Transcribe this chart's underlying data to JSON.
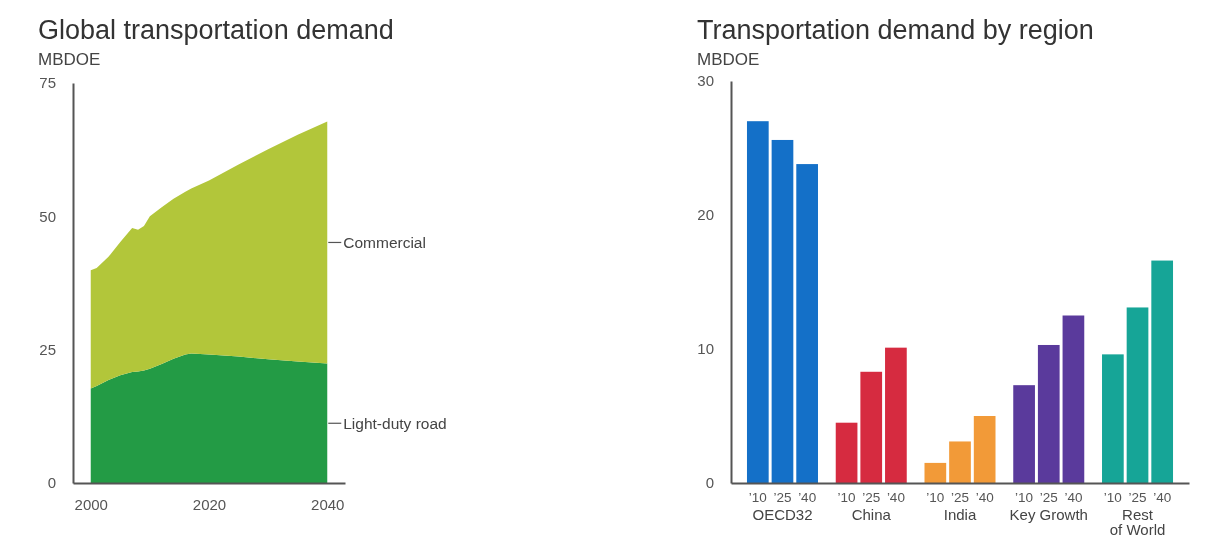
{
  "chart_data": [
    {
      "type": "area",
      "title": "Global transportation demand",
      "ylabel": "MBDOE",
      "stacked": true,
      "x": [
        2000,
        2001,
        2003,
        2005,
        2007,
        2008,
        2009,
        2010,
        2012,
        2014,
        2016,
        2017,
        2020,
        2025,
        2030,
        2035,
        2040
      ],
      "series": [
        {
          "name": "Light-duty road",
          "color": "#239b45",
          "values": [
            17.7,
            18.2,
            19.3,
            20.2,
            20.8,
            20.9,
            21.1,
            21.4,
            22.3,
            23.3,
            24.1,
            24.3,
            24.1,
            23.7,
            23.2,
            22.8,
            22.4
          ]
        },
        {
          "name": "Commercial",
          "color": "#b2c63a",
          "values": [
            22.2,
            22.1,
            23.1,
            25.0,
            27.0,
            26.6,
            27.1,
            28.6,
            29.4,
            30.0,
            30.5,
            30.9,
            32.6,
            36.0,
            39.4,
            42.5,
            45.4
          ]
        }
      ],
      "xlim": [
        1997,
        2043
      ],
      "xticks": [
        2000,
        2020,
        2040
      ],
      "ylim": [
        0,
        75
      ],
      "yticks": [
        0,
        25,
        50,
        75
      ]
    },
    {
      "type": "bar",
      "title": "Transportation demand by region",
      "ylabel": "MBDOE",
      "categories": [
        "OECD32",
        "China",
        "India",
        "Key Growth",
        "Rest of World"
      ],
      "series": [
        {
          "name": "’10",
          "colors": [
            "#1470c8",
            "#d62b40",
            "#f29a38",
            "#5a3a9c",
            "#16a597"
          ],
          "values": [
            27.0,
            4.5,
            1.5,
            7.3,
            9.6
          ]
        },
        {
          "name": "’25",
          "colors": [
            "#1470c8",
            "#d62b40",
            "#f29a38",
            "#5a3a9c",
            "#16a597"
          ],
          "values": [
            25.6,
            8.3,
            3.1,
            10.3,
            13.1
          ]
        },
        {
          "name": "’40",
          "colors": [
            "#1470c8",
            "#d62b40",
            "#f29a38",
            "#5a3a9c",
            "#16a597"
          ],
          "values": [
            23.8,
            10.1,
            5.0,
            12.5,
            16.6
          ]
        }
      ],
      "ylim": [
        0,
        30
      ],
      "yticks": [
        0,
        10,
        20,
        30
      ]
    }
  ]
}
